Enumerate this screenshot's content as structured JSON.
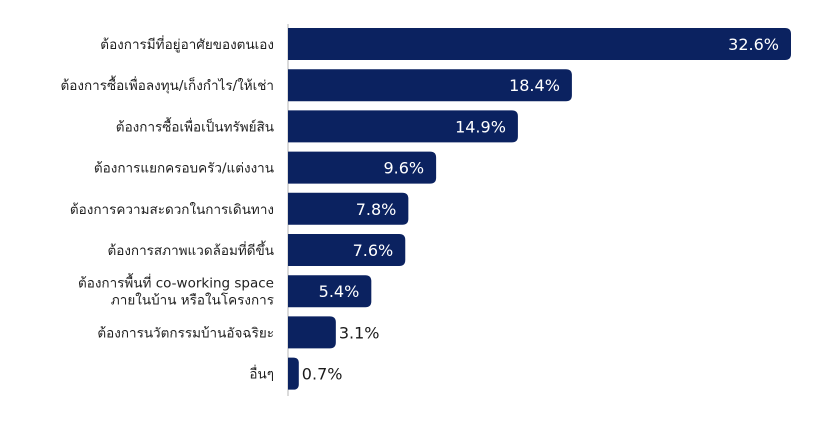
{
  "chart_data": {
    "type": "bar",
    "orientation": "horizontal",
    "categories": [
      "ต้องการมีที่อยู่อาศัยของตนเอง",
      "ต้องการซื้อเพื่อลงทุน/เก็งกำไร/ให้เช่า",
      "ต้องการซื้อเพื่อเป็นทรัพย์สิน",
      "ต้องการแยกครอบครัว/แต่งงาน",
      "ต้องการความสะดวกในการเดินทาง",
      "ต้องการสภาพแวดล้อมที่ดีขึ้น",
      "ต้องการพื้นที่ co-working space\nภายในบ้าน หรือในโครงการ",
      "ต้องการนวัตกรรมบ้านอัจฉริยะ",
      "อื่นๆ"
    ],
    "values": [
      32.6,
      18.4,
      14.9,
      9.6,
      7.8,
      7.6,
      5.4,
      3.1,
      0.7
    ],
    "value_labels": [
      "32.6%",
      "18.4%",
      "14.9%",
      "9.6%",
      "7.8%",
      "7.6%",
      "5.4%",
      "3.1%",
      "0.7%"
    ],
    "unit": "%",
    "xlim": [
      0,
      32.6
    ],
    "grid": false,
    "bar_color": "#0b2260"
  }
}
